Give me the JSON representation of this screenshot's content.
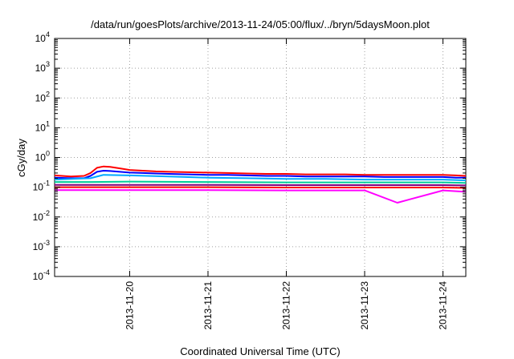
{
  "chart_data": {
    "type": "line",
    "title": "/data/run/goesPlots/archive/2013-11-24/05:00/flux/../bryn/5daysMoon.plot",
    "xlabel": "Coordinated Universal Time (UTC)",
    "ylabel": "cGy/day",
    "y_scale": "log",
    "ylim": [
      0.0001,
      10000
    ],
    "y_ticks": [
      {
        "base": "10",
        "exp": "-4"
      },
      {
        "base": "10",
        "exp": "-3"
      },
      {
        "base": "10",
        "exp": "-2"
      },
      {
        "base": "10",
        "exp": "-1"
      },
      {
        "base": "10",
        "exp": "0"
      },
      {
        "base": "10",
        "exp": "1"
      },
      {
        "base": "10",
        "exp": "2"
      },
      {
        "base": "10",
        "exp": "3"
      },
      {
        "base": "10",
        "exp": "4"
      }
    ],
    "xlim": [
      "2013-11-19 01:00",
      "2013-11-24 07:00"
    ],
    "x_ticks": [
      "2013-11-20",
      "2013-11-21",
      "2013-11-22",
      "2013-11-23",
      "2013-11-24"
    ],
    "grid": true,
    "series": [
      {
        "color": "#ff0000",
        "x": [
          "2013-11-19 01:00",
          "2013-11-19 06:00",
          "2013-11-19 10:00",
          "2013-11-19 12:00",
          "2013-11-19 14:00",
          "2013-11-19 16:00",
          "2013-11-19 18:00",
          "2013-11-19 21:00",
          "2013-11-20 00:00",
          "2013-11-20 04:00",
          "2013-11-20 08:00",
          "2013-11-20 12:00",
          "2013-11-20 18:00",
          "2013-11-21 00:00",
          "2013-11-21 06:00",
          "2013-11-21 12:00",
          "2013-11-21 18:00",
          "2013-11-22 00:00",
          "2013-11-22 06:00",
          "2013-11-22 12:00",
          "2013-11-22 18:00",
          "2013-11-23 00:00",
          "2013-11-23 06:00",
          "2013-11-23 12:00",
          "2013-11-23 18:00",
          "2013-11-24 00:00",
          "2013-11-24 04:00",
          "2013-11-24 07:00"
        ],
        "y": [
          0.25,
          0.23,
          0.24,
          0.3,
          0.45,
          0.5,
          0.48,
          0.43,
          0.38,
          0.36,
          0.34,
          0.33,
          0.32,
          0.31,
          0.3,
          0.29,
          0.28,
          0.28,
          0.27,
          0.27,
          0.27,
          0.26,
          0.26,
          0.26,
          0.26,
          0.26,
          0.25,
          0.24
        ]
      },
      {
        "color": "#0000ff",
        "x": [
          "2013-11-19 01:00",
          "2013-11-19 06:00",
          "2013-11-19 10:00",
          "2013-11-19 12:00",
          "2013-11-19 14:00",
          "2013-11-19 16:00",
          "2013-11-19 18:00",
          "2013-11-19 21:00",
          "2013-11-20 00:00",
          "2013-11-20 04:00",
          "2013-11-20 08:00",
          "2013-11-20 12:00",
          "2013-11-20 18:00",
          "2013-11-21 00:00",
          "2013-11-21 06:00",
          "2013-11-21 12:00",
          "2013-11-21 18:00",
          "2013-11-22 00:00",
          "2013-11-22 06:00",
          "2013-11-22 12:00",
          "2013-11-22 18:00",
          "2013-11-23 00:00",
          "2013-11-23 06:00",
          "2013-11-23 12:00",
          "2013-11-23 18:00",
          "2013-11-24 00:00",
          "2013-11-24 04:00",
          "2013-11-24 07:00"
        ],
        "y": [
          0.21,
          0.2,
          0.2,
          0.24,
          0.33,
          0.36,
          0.35,
          0.33,
          0.31,
          0.3,
          0.29,
          0.28,
          0.27,
          0.26,
          0.26,
          0.25,
          0.24,
          0.24,
          0.23,
          0.23,
          0.23,
          0.23,
          0.22,
          0.22,
          0.22,
          0.22,
          0.21,
          0.21
        ]
      },
      {
        "color": "#00aaff",
        "x": [
          "2013-11-19 01:00",
          "2013-11-19 12:00",
          "2013-11-19 16:00",
          "2013-11-20 00:00",
          "2013-11-20 12:00",
          "2013-11-21 00:00",
          "2013-11-21 12:00",
          "2013-11-22 00:00",
          "2013-11-22 12:00",
          "2013-11-23 00:00",
          "2013-11-23 12:00",
          "2013-11-24 00:00",
          "2013-11-24 07:00"
        ],
        "y": [
          0.18,
          0.2,
          0.26,
          0.25,
          0.23,
          0.21,
          0.2,
          0.19,
          0.19,
          0.18,
          0.18,
          0.18,
          0.17
        ]
      },
      {
        "color": "#00cc99",
        "x": [
          "2013-11-19 01:00",
          "2013-11-19 12:00",
          "2013-11-20 00:00",
          "2013-11-21 00:00",
          "2013-11-22 00:00",
          "2013-11-23 00:00",
          "2013-11-24 00:00",
          "2013-11-24 07:00"
        ],
        "y": [
          0.15,
          0.15,
          0.155,
          0.15,
          0.145,
          0.145,
          0.145,
          0.14
        ]
      },
      {
        "color": "#800080",
        "x": [
          "2013-11-19 01:00",
          "2013-11-19 12:00",
          "2013-11-20 00:00",
          "2013-11-21 00:00",
          "2013-11-22 00:00",
          "2013-11-23 00:00",
          "2013-11-24 00:00",
          "2013-11-24 07:00"
        ],
        "y": [
          0.12,
          0.12,
          0.12,
          0.12,
          0.118,
          0.118,
          0.118,
          0.115
        ]
      },
      {
        "color": "#ff0000",
        "x": [
          "2013-11-19 01:00",
          "2013-11-19 12:00",
          "2013-11-20 00:00",
          "2013-11-21 00:00",
          "2013-11-22 00:00",
          "2013-11-23 00:00",
          "2013-11-24 00:00",
          "2013-11-24 07:00"
        ],
        "y": [
          0.1,
          0.1,
          0.1,
          0.1,
          0.098,
          0.098,
          0.098,
          0.095
        ]
      },
      {
        "color": "#ff00ff",
        "x": [
          "2013-11-19 01:00",
          "2013-11-19 12:00",
          "2013-11-20 00:00",
          "2013-11-21 00:00",
          "2013-11-22 00:00",
          "2013-11-23 00:00",
          "2013-11-23 10:00",
          "2013-11-24 00:00",
          "2013-11-24 07:00"
        ],
        "y": [
          0.08,
          0.08,
          0.08,
          0.08,
          0.078,
          0.078,
          0.03,
          0.078,
          0.07
        ]
      }
    ]
  }
}
